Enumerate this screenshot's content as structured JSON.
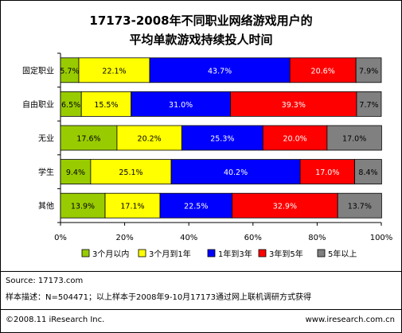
{
  "title_line1": "17173-2008年不同职业网络游戏用户的",
  "title_line2": "平均单款游戏持续投人时间",
  "source": "Source:  17173.com",
  "note": "样本描述：N=504471；以上样本于2008年9-10月17173通过网上联机调研方式获得",
  "copyright": "©2008.11 iResearch Inc.",
  "website": "www.iresearch.com.cn",
  "chart_data": {
    "type": "bar",
    "orientation": "horizontal",
    "stacked": true,
    "categories": [
      "固定职业",
      "自由职业",
      "无业",
      "学生",
      "其他"
    ],
    "series": [
      {
        "name": "3个月以内",
        "color": "#99cc00",
        "values": [
          5.7,
          6.5,
          17.6,
          9.4,
          13.9
        ],
        "labels": [
          "5.7%",
          "6.5%",
          "17.6%",
          "9.4%",
          "13.9%"
        ]
      },
      {
        "name": "3个月到1年",
        "color": "#ffff00",
        "values": [
          22.1,
          15.5,
          20.2,
          25.1,
          17.1
        ],
        "labels": [
          "22.1%",
          "15.5%",
          "20.2%",
          "25.1%",
          "17.1%"
        ]
      },
      {
        "name": "1年到3年",
        "color": "#0000ff",
        "values": [
          43.7,
          31.0,
          25.3,
          40.2,
          22.5
        ],
        "labels": [
          "43.7%",
          "31.0%",
          "25.3%",
          "40.2%",
          "22.5%"
        ]
      },
      {
        "name": "3年到5年",
        "color": "#ff0000",
        "values": [
          20.6,
          39.3,
          20.0,
          17.0,
          32.9
        ],
        "labels": [
          "20.6%",
          "39.3%",
          "20.0%",
          "17.0%",
          "32.9%"
        ]
      },
      {
        "name": "5年以上",
        "color": "#808080",
        "values": [
          7.9,
          7.7,
          17.0,
          8.4,
          13.7
        ],
        "labels": [
          "7.9%",
          "7.7%",
          "17.0%",
          "8.4%",
          "13.7%"
        ]
      }
    ],
    "xlim": [
      0,
      100
    ],
    "xticks": [
      "0%",
      "20%",
      "40%",
      "60%",
      "80%",
      "100%"
    ],
    "grid": false,
    "legend_position": "bottom"
  }
}
